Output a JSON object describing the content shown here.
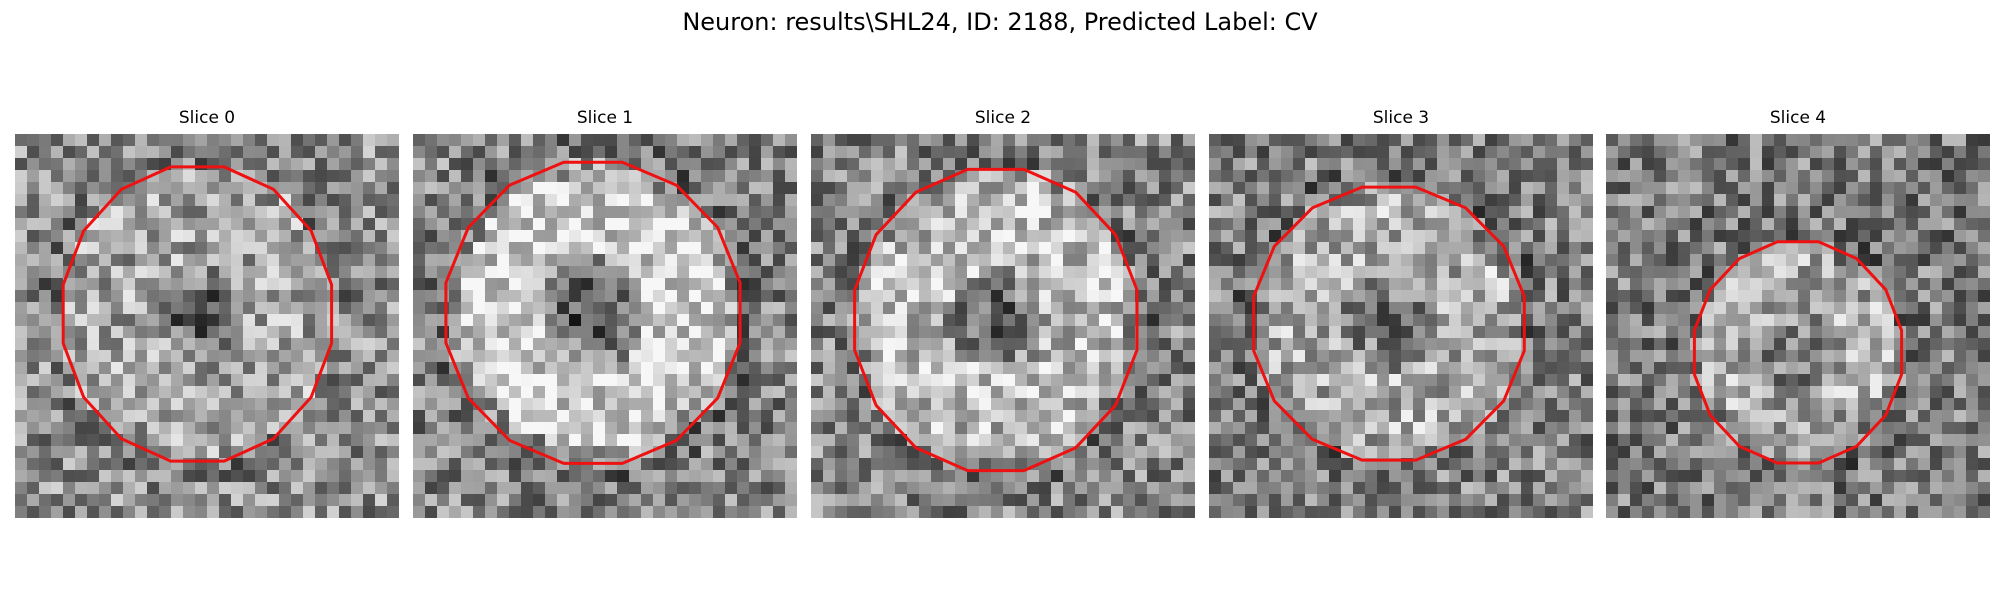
{
  "figure": {
    "title": "Neuron: results\\SHL24, ID: 2188, Predicted Label: CV"
  },
  "panels": [
    {
      "title": "Slice 0"
    },
    {
      "title": "Slice 1"
    },
    {
      "title": "Slice 2"
    },
    {
      "title": "Slice 3"
    },
    {
      "title": "Slice 4"
    }
  ],
  "colors": {
    "outline": "#ee1111",
    "background": "#ffffff"
  }
}
